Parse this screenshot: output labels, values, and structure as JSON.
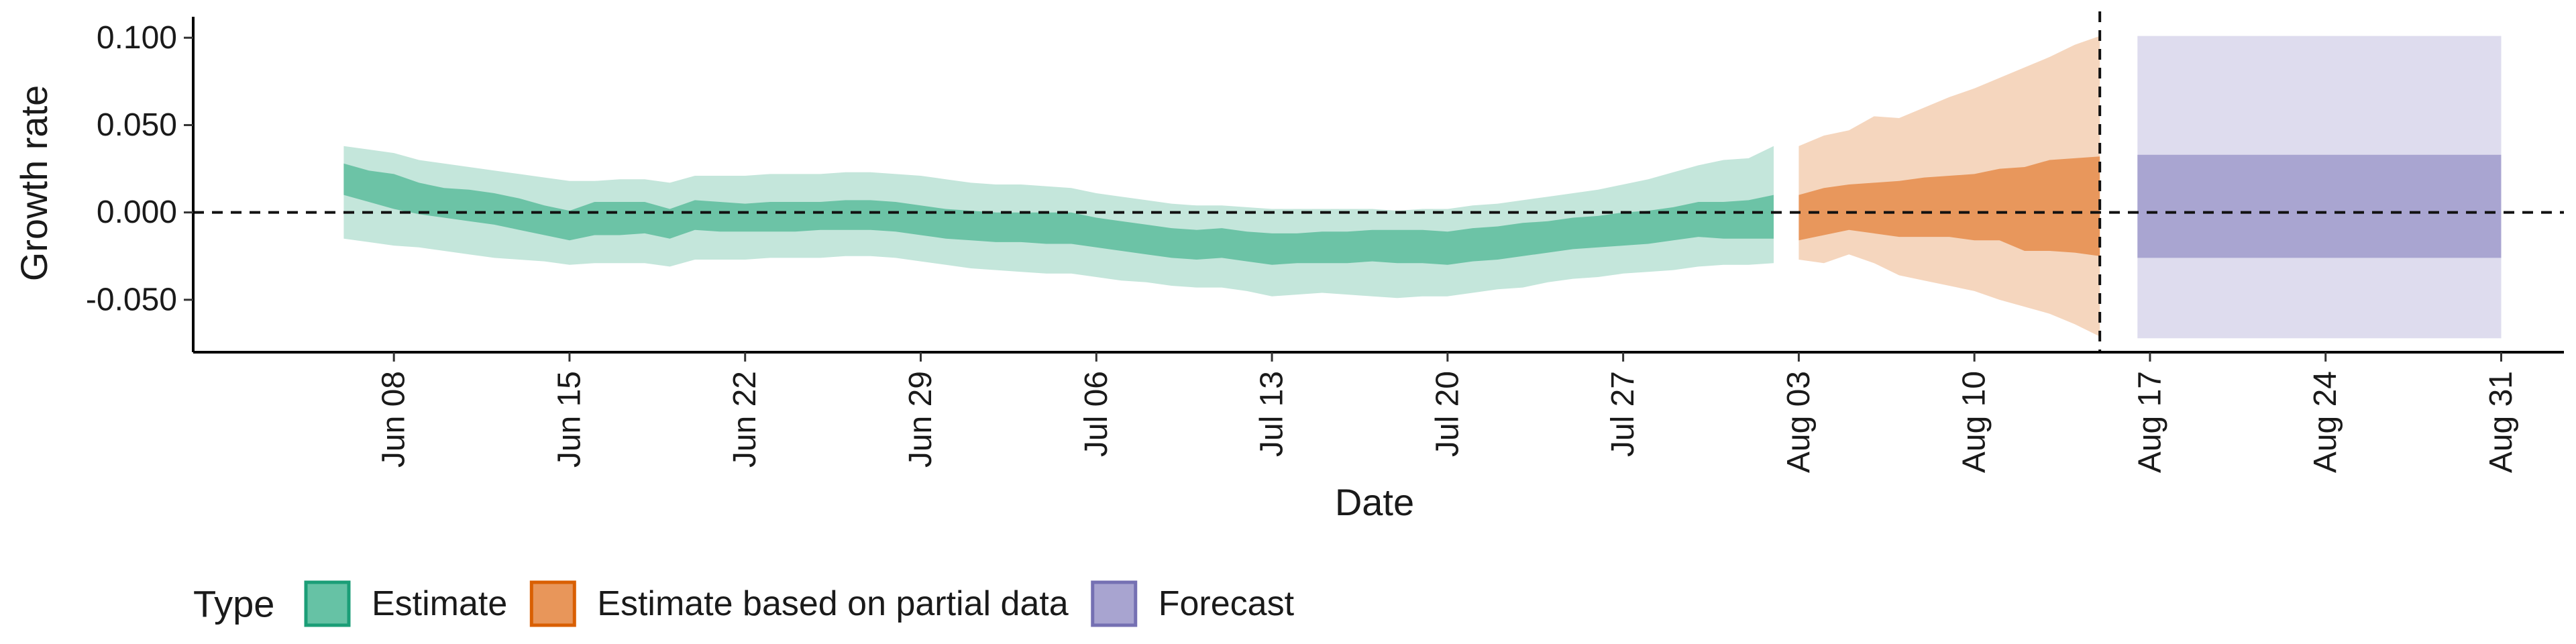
{
  "chart_data": {
    "type": "area",
    "title": "",
    "xlabel": "Date",
    "ylabel": "Growth rate",
    "x_ticks": [
      "Jun 08",
      "Jun 15",
      "Jun 22",
      "Jun 29",
      "Jul 06",
      "Jul 13",
      "Jul 20",
      "Jul 27",
      "Aug 03",
      "Aug 10",
      "Aug 17",
      "Aug 24",
      "Aug 31"
    ],
    "x_tick_days": [
      8,
      15,
      22,
      29,
      36,
      43,
      50,
      57,
      64,
      71,
      78,
      85,
      92
    ],
    "x_day_origin": "May 31",
    "xlim": [
      0,
      94.5
    ],
    "y_ticks": [
      "0.100",
      "0.050",
      "0.000",
      "-0.050"
    ],
    "y_tick_values": [
      0.1,
      0.05,
      0.0,
      -0.05
    ],
    "ylim": [
      -0.08,
      0.112
    ],
    "reference_lines": [
      {
        "axis": "y",
        "value": 0.0,
        "style": "dashed"
      },
      {
        "axis": "x",
        "value": 76,
        "label": "Aug 15",
        "style": "dashed"
      }
    ],
    "legend": {
      "title": "Type",
      "placement": "bottom-left",
      "items": [
        {
          "label": "Estimate",
          "fill": "#66C2A5",
          "stroke": "#1B9E77"
        },
        {
          "label": "Estimate based on partial data",
          "fill": "#E8965A",
          "stroke": "#D95F02"
        },
        {
          "label": "Forecast",
          "fill": "#A8A4D0",
          "stroke": "#7570B3"
        }
      ]
    },
    "series": [
      {
        "name": "Estimate",
        "outer_color": "#C4E6DB",
        "inner_color": "#6CC3A6",
        "points": [
          {
            "day": 6,
            "lo90": -0.015,
            "lo50": 0.01,
            "hi50": 0.028,
            "hi90": 0.038
          },
          {
            "day": 7,
            "lo90": -0.017,
            "lo50": 0.006,
            "hi50": 0.024,
            "hi90": 0.036
          },
          {
            "day": 8,
            "lo90": -0.019,
            "lo50": 0.002,
            "hi50": 0.022,
            "hi90": 0.034
          },
          {
            "day": 9,
            "lo90": -0.02,
            "lo50": -0.001,
            "hi50": 0.017,
            "hi90": 0.03
          },
          {
            "day": 10,
            "lo90": -0.022,
            "lo50": -0.003,
            "hi50": 0.014,
            "hi90": 0.028
          },
          {
            "day": 11,
            "lo90": -0.024,
            "lo50": -0.005,
            "hi50": 0.013,
            "hi90": 0.026
          },
          {
            "day": 12,
            "lo90": -0.026,
            "lo50": -0.007,
            "hi50": 0.011,
            "hi90": 0.024
          },
          {
            "day": 13,
            "lo90": -0.027,
            "lo50": -0.01,
            "hi50": 0.008,
            "hi90": 0.022
          },
          {
            "day": 14,
            "lo90": -0.028,
            "lo50": -0.013,
            "hi50": 0.004,
            "hi90": 0.02
          },
          {
            "day": 15,
            "lo90": -0.03,
            "lo50": -0.016,
            "hi50": 0.001,
            "hi90": 0.018
          },
          {
            "day": 16,
            "lo90": -0.029,
            "lo50": -0.013,
            "hi50": 0.006,
            "hi90": 0.018
          },
          {
            "day": 17,
            "lo90": -0.029,
            "lo50": -0.013,
            "hi50": 0.006,
            "hi90": 0.019
          },
          {
            "day": 18,
            "lo90": -0.029,
            "lo50": -0.012,
            "hi50": 0.006,
            "hi90": 0.019
          },
          {
            "day": 19,
            "lo90": -0.031,
            "lo50": -0.015,
            "hi50": 0.002,
            "hi90": 0.017
          },
          {
            "day": 20,
            "lo90": -0.027,
            "lo50": -0.01,
            "hi50": 0.007,
            "hi90": 0.021
          },
          {
            "day": 21,
            "lo90": -0.027,
            "lo50": -0.011,
            "hi50": 0.006,
            "hi90": 0.021
          },
          {
            "day": 22,
            "lo90": -0.027,
            "lo50": -0.011,
            "hi50": 0.005,
            "hi90": 0.021
          },
          {
            "day": 23,
            "lo90": -0.026,
            "lo50": -0.011,
            "hi50": 0.006,
            "hi90": 0.022
          },
          {
            "day": 24,
            "lo90": -0.026,
            "lo50": -0.011,
            "hi50": 0.006,
            "hi90": 0.022
          },
          {
            "day": 25,
            "lo90": -0.026,
            "lo50": -0.01,
            "hi50": 0.006,
            "hi90": 0.022
          },
          {
            "day": 26,
            "lo90": -0.025,
            "lo50": -0.01,
            "hi50": 0.007,
            "hi90": 0.023
          },
          {
            "day": 27,
            "lo90": -0.025,
            "lo50": -0.01,
            "hi50": 0.007,
            "hi90": 0.023
          },
          {
            "day": 28,
            "lo90": -0.026,
            "lo50": -0.011,
            "hi50": 0.006,
            "hi90": 0.022
          },
          {
            "day": 29,
            "lo90": -0.028,
            "lo50": -0.013,
            "hi50": 0.004,
            "hi90": 0.021
          },
          {
            "day": 30,
            "lo90": -0.03,
            "lo50": -0.015,
            "hi50": 0.002,
            "hi90": 0.019
          },
          {
            "day": 31,
            "lo90": -0.032,
            "lo50": -0.016,
            "hi50": 0.001,
            "hi90": 0.017
          },
          {
            "day": 32,
            "lo90": -0.033,
            "lo50": -0.017,
            "hi50": 0.0,
            "hi90": 0.016
          },
          {
            "day": 33,
            "lo90": -0.034,
            "lo50": -0.017,
            "hi50": 0.0,
            "hi90": 0.016
          },
          {
            "day": 34,
            "lo90": -0.035,
            "lo50": -0.018,
            "hi50": 0.0,
            "hi90": 0.015
          },
          {
            "day": 35,
            "lo90": -0.035,
            "lo50": -0.018,
            "hi50": 0.0,
            "hi90": 0.014
          },
          {
            "day": 36,
            "lo90": -0.037,
            "lo50": -0.02,
            "hi50": -0.003,
            "hi90": 0.011
          },
          {
            "day": 37,
            "lo90": -0.039,
            "lo50": -0.022,
            "hi50": -0.005,
            "hi90": 0.009
          },
          {
            "day": 38,
            "lo90": -0.04,
            "lo50": -0.024,
            "hi50": -0.007,
            "hi90": 0.007
          },
          {
            "day": 39,
            "lo90": -0.042,
            "lo50": -0.026,
            "hi50": -0.009,
            "hi90": 0.005
          },
          {
            "day": 40,
            "lo90": -0.043,
            "lo50": -0.027,
            "hi50": -0.01,
            "hi90": 0.004
          },
          {
            "day": 41,
            "lo90": -0.043,
            "lo50": -0.026,
            "hi50": -0.009,
            "hi90": 0.004
          },
          {
            "day": 42,
            "lo90": -0.045,
            "lo50": -0.028,
            "hi50": -0.011,
            "hi90": 0.003
          },
          {
            "day": 43,
            "lo90": -0.048,
            "lo50": -0.03,
            "hi50": -0.012,
            "hi90": 0.002
          },
          {
            "day": 44,
            "lo90": -0.047,
            "lo50": -0.029,
            "hi50": -0.012,
            "hi90": 0.002
          },
          {
            "day": 45,
            "lo90": -0.046,
            "lo50": -0.029,
            "hi50": -0.011,
            "hi90": 0.002
          },
          {
            "day": 46,
            "lo90": -0.047,
            "lo50": -0.029,
            "hi50": -0.011,
            "hi90": 0.002
          },
          {
            "day": 47,
            "lo90": -0.048,
            "lo50": -0.028,
            "hi50": -0.01,
            "hi90": 0.002
          },
          {
            "day": 48,
            "lo90": -0.049,
            "lo50": -0.029,
            "hi50": -0.01,
            "hi90": 0.001
          },
          {
            "day": 49,
            "lo90": -0.048,
            "lo50": -0.029,
            "hi50": -0.01,
            "hi90": 0.002
          },
          {
            "day": 50,
            "lo90": -0.048,
            "lo50": -0.03,
            "hi50": -0.011,
            "hi90": 0.002
          },
          {
            "day": 51,
            "lo90": -0.046,
            "lo50": -0.028,
            "hi50": -0.009,
            "hi90": 0.004
          },
          {
            "day": 52,
            "lo90": -0.044,
            "lo50": -0.027,
            "hi50": -0.008,
            "hi90": 0.005
          },
          {
            "day": 53,
            "lo90": -0.043,
            "lo50": -0.025,
            "hi50": -0.006,
            "hi90": 0.007
          },
          {
            "day": 54,
            "lo90": -0.04,
            "lo50": -0.023,
            "hi50": -0.005,
            "hi90": 0.009
          },
          {
            "day": 55,
            "lo90": -0.038,
            "lo50": -0.021,
            "hi50": -0.003,
            "hi90": 0.011
          },
          {
            "day": 56,
            "lo90": -0.037,
            "lo50": -0.02,
            "hi50": -0.002,
            "hi90": 0.013
          },
          {
            "day": 57,
            "lo90": -0.035,
            "lo50": -0.019,
            "hi50": 0.0,
            "hi90": 0.016
          },
          {
            "day": 58,
            "lo90": -0.034,
            "lo50": -0.018,
            "hi50": 0.001,
            "hi90": 0.019
          },
          {
            "day": 59,
            "lo90": -0.033,
            "lo50": -0.016,
            "hi50": 0.003,
            "hi90": 0.023
          },
          {
            "day": 60,
            "lo90": -0.031,
            "lo50": -0.014,
            "hi50": 0.006,
            "hi90": 0.027
          },
          {
            "day": 61,
            "lo90": -0.03,
            "lo50": -0.015,
            "hi50": 0.006,
            "hi90": 0.03
          },
          {
            "day": 62,
            "lo90": -0.03,
            "lo50": -0.015,
            "hi50": 0.007,
            "hi90": 0.031
          },
          {
            "day": 63,
            "lo90": -0.029,
            "lo50": -0.015,
            "hi50": 0.01,
            "hi90": 0.038
          }
        ]
      },
      {
        "name": "Estimate based on partial data",
        "outer_color": "#F5D6BE",
        "inner_color": "#E8975C",
        "points": [
          {
            "day": 64,
            "lo90": -0.027,
            "lo50": -0.016,
            "hi50": 0.01,
            "hi90": 0.038
          },
          {
            "day": 65,
            "lo90": -0.029,
            "lo50": -0.013,
            "hi50": 0.014,
            "hi90": 0.044
          },
          {
            "day": 66,
            "lo90": -0.024,
            "lo50": -0.01,
            "hi50": 0.016,
            "hi90": 0.047
          },
          {
            "day": 67,
            "lo90": -0.029,
            "lo50": -0.012,
            "hi50": 0.017,
            "hi90": 0.055
          },
          {
            "day": 68,
            "lo90": -0.036,
            "lo50": -0.014,
            "hi50": 0.018,
            "hi90": 0.054
          },
          {
            "day": 69,
            "lo90": -0.039,
            "lo50": -0.014,
            "hi50": 0.02,
            "hi90": 0.06
          },
          {
            "day": 70,
            "lo90": -0.042,
            "lo50": -0.014,
            "hi50": 0.021,
            "hi90": 0.066
          },
          {
            "day": 71,
            "lo90": -0.045,
            "lo50": -0.016,
            "hi50": 0.022,
            "hi90": 0.071
          },
          {
            "day": 72,
            "lo90": -0.05,
            "lo50": -0.016,
            "hi50": 0.025,
            "hi90": 0.077
          },
          {
            "day": 73,
            "lo90": -0.054,
            "lo50": -0.022,
            "hi50": 0.026,
            "hi90": 0.083
          },
          {
            "day": 74,
            "lo90": -0.058,
            "lo50": -0.022,
            "hi50": 0.03,
            "hi90": 0.089
          },
          {
            "day": 75,
            "lo90": -0.064,
            "lo50": -0.023,
            "hi50": 0.031,
            "hi90": 0.096
          },
          {
            "day": 76,
            "lo90": -0.071,
            "lo50": -0.025,
            "hi50": 0.032,
            "hi90": 0.101
          }
        ]
      },
      {
        "name": "Forecast",
        "outer_color": "#DEDCEE",
        "inner_color": "#A9A5D1",
        "points": [
          {
            "day": 77.5,
            "lo90": -0.072,
            "lo50": -0.026,
            "hi50": 0.033,
            "hi90": 0.101
          },
          {
            "day": 92,
            "lo90": -0.072,
            "lo50": -0.026,
            "hi50": 0.033,
            "hi90": 0.101
          }
        ]
      }
    ]
  }
}
